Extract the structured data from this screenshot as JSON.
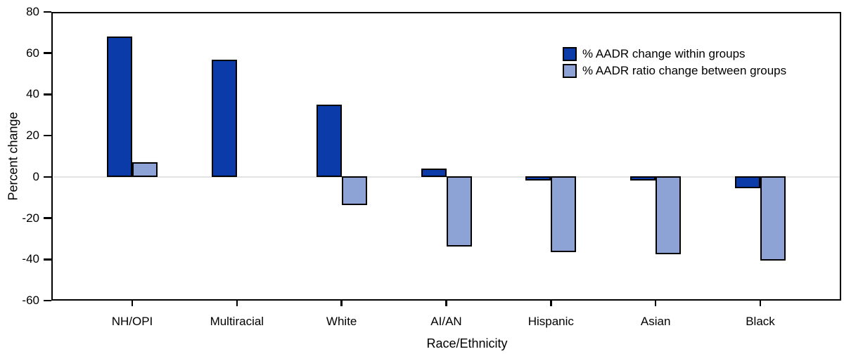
{
  "chart_data": {
    "type": "bar",
    "title": "",
    "xlabel": "Race/Ethnicity",
    "ylabel": "Percent change",
    "ylim": [
      -60,
      80
    ],
    "ytick_interval": 20,
    "yticks": [
      80,
      60,
      40,
      20,
      0,
      -20,
      -40,
      -60
    ],
    "categories": [
      "NH/OPI",
      "Multiracial",
      "White",
      "AI/AN",
      "Hispanic",
      "Asian",
      "Black"
    ],
    "series": [
      {
        "name": "% AADR change within groups",
        "color": "#0a3ba8",
        "values": [
          68,
          57,
          35,
          4,
          -2,
          -2,
          -6
        ]
      },
      {
        "name": "% AADR ratio change between groups",
        "color": "#8da3d6",
        "values": [
          7,
          null,
          -14,
          -34,
          -37,
          -38,
          -41
        ]
      }
    ],
    "legend_position": "top-right",
    "grid": "zero-line-only",
    "colors": {
      "axis": "#000000",
      "zero_line": "#e3e3e3",
      "background": "#ffffff"
    }
  }
}
